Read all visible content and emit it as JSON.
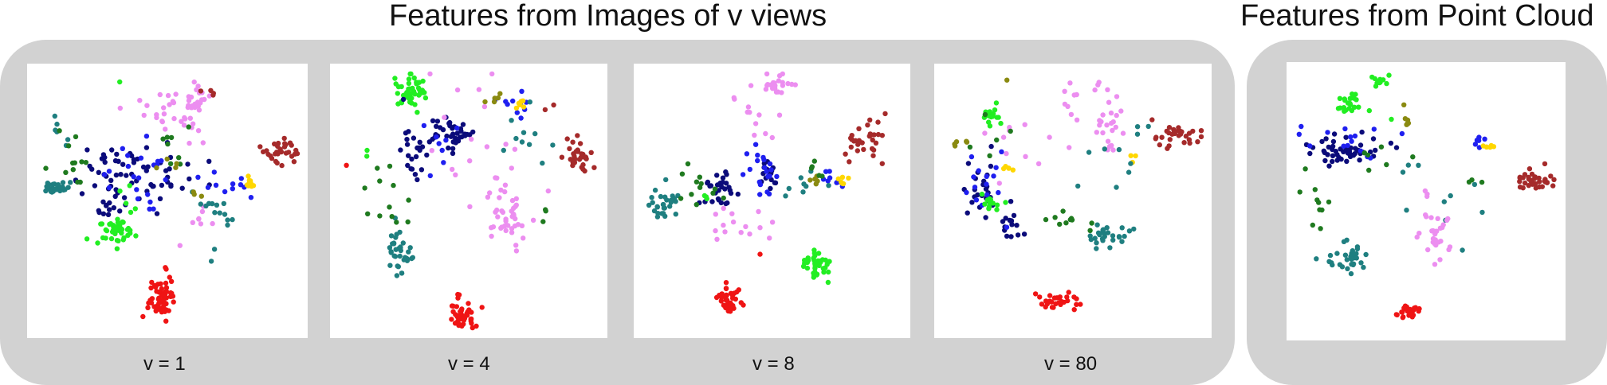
{
  "headings": {
    "views": "Features from Images of v views",
    "point_cloud": "Features from Point Cloud"
  },
  "colors": {
    "navy": "#0b0b7a",
    "blue": "#1f1ff0",
    "green": "#22ee22",
    "dark_green": "#1f7a1f",
    "teal": "#1f7f80",
    "violet": "#ec8ef0",
    "red": "#ef1414",
    "brown": "#a52a2a",
    "olive": "#8a8a10",
    "gold": "#ffd700"
  },
  "chart_data": [
    {
      "type": "scatter",
      "caption": "v = 1",
      "clusters": [
        {
          "color": "violet",
          "cx": 0.6,
          "cy": 0.12,
          "sx": 0.05,
          "sy": 0.03,
          "n": 30
        },
        {
          "color": "violet",
          "cx": 0.47,
          "cy": 0.15,
          "sx": 0.06,
          "sy": 0.06,
          "n": 12
        },
        {
          "color": "violet",
          "cx": 0.59,
          "cy": 0.25,
          "sx": 0.02,
          "sy": 0.04,
          "n": 8
        },
        {
          "color": "violet",
          "cx": 0.62,
          "cy": 0.58,
          "sx": 0.03,
          "sy": 0.06,
          "n": 8
        },
        {
          "color": "brown",
          "cx": 0.92,
          "cy": 0.31,
          "sx": 0.04,
          "sy": 0.025,
          "n": 30
        },
        {
          "color": "brown",
          "cx": 0.66,
          "cy": 0.1,
          "sx": 0.01,
          "sy": 0.01,
          "n": 4
        },
        {
          "color": "navy",
          "cx": 0.36,
          "cy": 0.4,
          "sx": 0.12,
          "sy": 0.05,
          "n": 60
        },
        {
          "color": "navy",
          "cx": 0.3,
          "cy": 0.52,
          "sx": 0.04,
          "sy": 0.04,
          "n": 15
        },
        {
          "color": "blue",
          "cx": 0.42,
          "cy": 0.42,
          "sx": 0.1,
          "sy": 0.06,
          "n": 22
        },
        {
          "color": "blue",
          "cx": 0.76,
          "cy": 0.44,
          "sx": 0.05,
          "sy": 0.03,
          "n": 10
        },
        {
          "color": "green",
          "cx": 0.31,
          "cy": 0.61,
          "sx": 0.03,
          "sy": 0.025,
          "n": 40
        },
        {
          "color": "green",
          "cx": 0.33,
          "cy": 0.52,
          "sx": 0.03,
          "sy": 0.05,
          "n": 8
        },
        {
          "color": "green",
          "cx": 0.32,
          "cy": 0.05,
          "sx": 0.005,
          "sy": 0.005,
          "n": 1
        },
        {
          "color": "teal",
          "cx": 0.09,
          "cy": 0.45,
          "sx": 0.03,
          "sy": 0.015,
          "n": 25
        },
        {
          "color": "teal",
          "cx": 0.65,
          "cy": 0.55,
          "sx": 0.05,
          "sy": 0.05,
          "n": 15
        },
        {
          "color": "teal",
          "cx": 0.1,
          "cy": 0.25,
          "sx": 0.02,
          "sy": 0.04,
          "n": 6
        },
        {
          "color": "dark_green",
          "cx": 0.16,
          "cy": 0.35,
          "sx": 0.04,
          "sy": 0.07,
          "n": 12
        },
        {
          "color": "dark_green",
          "cx": 0.52,
          "cy": 0.28,
          "sx": 0.05,
          "sy": 0.05,
          "n": 8
        },
        {
          "color": "olive",
          "cx": 0.6,
          "cy": 0.47,
          "sx": 0.02,
          "sy": 0.01,
          "n": 3
        },
        {
          "color": "olive",
          "cx": 0.5,
          "cy": 0.35,
          "sx": 0.03,
          "sy": 0.04,
          "n": 4
        },
        {
          "color": "gold",
          "cx": 0.81,
          "cy": 0.43,
          "sx": 0.015,
          "sy": 0.012,
          "n": 10
        },
        {
          "color": "red",
          "cx": 0.47,
          "cy": 0.88,
          "sx": 0.025,
          "sy": 0.04,
          "n": 55
        },
        {
          "color": "red",
          "cx": 0.49,
          "cy": 0.76,
          "sx": 0.005,
          "sy": 0.005,
          "n": 2
        }
      ]
    },
    {
      "type": "scatter",
      "caption": "v = 4",
      "clusters": [
        {
          "color": "green",
          "cx": 0.28,
          "cy": 0.08,
          "sx": 0.035,
          "sy": 0.035,
          "n": 45
        },
        {
          "color": "green",
          "cx": 0.13,
          "cy": 0.32,
          "sx": 0.01,
          "sy": 0.01,
          "n": 2
        },
        {
          "color": "navy",
          "cx": 0.44,
          "cy": 0.24,
          "sx": 0.035,
          "sy": 0.03,
          "n": 35
        },
        {
          "color": "navy",
          "cx": 0.29,
          "cy": 0.31,
          "sx": 0.04,
          "sy": 0.06,
          "n": 25
        },
        {
          "color": "blue",
          "cx": 0.67,
          "cy": 0.12,
          "sx": 0.04,
          "sy": 0.03,
          "n": 10
        },
        {
          "color": "blue",
          "cx": 0.4,
          "cy": 0.3,
          "sx": 0.05,
          "sy": 0.05,
          "n": 8
        },
        {
          "color": "gold",
          "cx": 0.69,
          "cy": 0.13,
          "sx": 0.015,
          "sy": 0.01,
          "n": 8
        },
        {
          "color": "olive",
          "cx": 0.6,
          "cy": 0.11,
          "sx": 0.015,
          "sy": 0.01,
          "n": 5
        },
        {
          "color": "brown",
          "cx": 0.92,
          "cy": 0.32,
          "sx": 0.025,
          "sy": 0.035,
          "n": 30
        },
        {
          "color": "brown",
          "cx": 0.8,
          "cy": 0.15,
          "sx": 0.01,
          "sy": 0.01,
          "n": 2
        },
        {
          "color": "teal",
          "cx": 0.7,
          "cy": 0.25,
          "sx": 0.06,
          "sy": 0.05,
          "n": 10
        },
        {
          "color": "teal",
          "cx": 0.24,
          "cy": 0.7,
          "sx": 0.025,
          "sy": 0.045,
          "n": 35
        },
        {
          "color": "violet",
          "cx": 0.65,
          "cy": 0.56,
          "sx": 0.04,
          "sy": 0.06,
          "n": 40
        },
        {
          "color": "violet",
          "cx": 0.55,
          "cy": 0.25,
          "sx": 0.12,
          "sy": 0.14,
          "n": 20
        },
        {
          "color": "dark_green",
          "cx": 0.2,
          "cy": 0.45,
          "sx": 0.05,
          "sy": 0.08,
          "n": 12
        },
        {
          "color": "dark_green",
          "cx": 0.78,
          "cy": 0.55,
          "sx": 0.04,
          "sy": 0.04,
          "n": 3
        },
        {
          "color": "red",
          "cx": 0.48,
          "cy": 0.93,
          "sx": 0.025,
          "sy": 0.03,
          "n": 45
        },
        {
          "color": "red",
          "cx": 0.04,
          "cy": 0.36,
          "sx": 0.005,
          "sy": 0.005,
          "n": 1
        }
      ]
    },
    {
      "type": "scatter",
      "caption": "v = 8",
      "clusters": [
        {
          "color": "violet",
          "cx": 0.52,
          "cy": 0.06,
          "sx": 0.03,
          "sy": 0.02,
          "n": 22
        },
        {
          "color": "violet",
          "cx": 0.42,
          "cy": 0.15,
          "sx": 0.05,
          "sy": 0.06,
          "n": 12
        },
        {
          "color": "violet",
          "cx": 0.35,
          "cy": 0.6,
          "sx": 0.07,
          "sy": 0.05,
          "n": 15
        },
        {
          "color": "brown",
          "cx": 0.87,
          "cy": 0.27,
          "sx": 0.035,
          "sy": 0.05,
          "n": 30
        },
        {
          "color": "navy",
          "cx": 0.31,
          "cy": 0.45,
          "sx": 0.04,
          "sy": 0.035,
          "n": 30
        },
        {
          "color": "navy",
          "cx": 0.49,
          "cy": 0.4,
          "sx": 0.025,
          "sy": 0.04,
          "n": 15
        },
        {
          "color": "blue",
          "cx": 0.48,
          "cy": 0.38,
          "sx": 0.035,
          "sy": 0.05,
          "n": 20
        },
        {
          "color": "blue",
          "cx": 0.74,
          "cy": 0.42,
          "sx": 0.03,
          "sy": 0.02,
          "n": 8
        },
        {
          "color": "gold",
          "cx": 0.77,
          "cy": 0.42,
          "sx": 0.015,
          "sy": 0.01,
          "n": 6
        },
        {
          "color": "olive",
          "cx": 0.66,
          "cy": 0.42,
          "sx": 0.02,
          "sy": 0.01,
          "n": 5
        },
        {
          "color": "teal",
          "cx": 0.1,
          "cy": 0.51,
          "sx": 0.03,
          "sy": 0.04,
          "n": 28
        },
        {
          "color": "teal",
          "cx": 0.62,
          "cy": 0.45,
          "sx": 0.06,
          "sy": 0.05,
          "n": 8
        },
        {
          "color": "dark_green",
          "cx": 0.22,
          "cy": 0.43,
          "sx": 0.05,
          "sy": 0.06,
          "n": 12
        },
        {
          "color": "dark_green",
          "cx": 0.65,
          "cy": 0.35,
          "sx": 0.04,
          "sy": 0.03,
          "n": 5
        },
        {
          "color": "green",
          "cx": 0.66,
          "cy": 0.74,
          "sx": 0.025,
          "sy": 0.025,
          "n": 40
        },
        {
          "color": "green",
          "cx": 0.25,
          "cy": 0.49,
          "sx": 0.01,
          "sy": 0.01,
          "n": 3
        },
        {
          "color": "red",
          "cx": 0.33,
          "cy": 0.88,
          "sx": 0.025,
          "sy": 0.03,
          "n": 40
        },
        {
          "color": "red",
          "cx": 0.46,
          "cy": 0.71,
          "sx": 0.005,
          "sy": 0.005,
          "n": 1
        }
      ]
    },
    {
      "type": "scatter",
      "caption": "v = 80",
      "clusters": [
        {
          "color": "violet",
          "cx": 0.63,
          "cy": 0.18,
          "sx": 0.03,
          "sy": 0.06,
          "n": 25
        },
        {
          "color": "violet",
          "cx": 0.51,
          "cy": 0.12,
          "sx": 0.02,
          "sy": 0.03,
          "n": 8
        },
        {
          "color": "violet",
          "cx": 0.4,
          "cy": 0.3,
          "sx": 0.1,
          "sy": 0.08,
          "n": 12
        },
        {
          "color": "brown",
          "cx": 0.89,
          "cy": 0.25,
          "sx": 0.05,
          "sy": 0.02,
          "n": 30
        },
        {
          "color": "navy",
          "cx": 0.16,
          "cy": 0.45,
          "sx": 0.03,
          "sy": 0.05,
          "n": 25
        },
        {
          "color": "navy",
          "cx": 0.26,
          "cy": 0.58,
          "sx": 0.02,
          "sy": 0.03,
          "n": 15
        },
        {
          "color": "blue",
          "cx": 0.18,
          "cy": 0.48,
          "sx": 0.04,
          "sy": 0.08,
          "n": 15
        },
        {
          "color": "gold",
          "cx": 0.26,
          "cy": 0.38,
          "sx": 0.015,
          "sy": 0.01,
          "n": 5
        },
        {
          "color": "gold",
          "cx": 0.73,
          "cy": 0.34,
          "sx": 0.008,
          "sy": 0.008,
          "n": 3
        },
        {
          "color": "green",
          "cx": 0.19,
          "cy": 0.51,
          "sx": 0.025,
          "sy": 0.02,
          "n": 12
        },
        {
          "color": "green",
          "cx": 0.2,
          "cy": 0.19,
          "sx": 0.02,
          "sy": 0.025,
          "n": 15
        },
        {
          "color": "teal",
          "cx": 0.62,
          "cy": 0.62,
          "sx": 0.04,
          "sy": 0.03,
          "n": 28
        },
        {
          "color": "teal",
          "cx": 0.65,
          "cy": 0.35,
          "sx": 0.05,
          "sy": 0.08,
          "n": 10
        },
        {
          "color": "dark_green",
          "cx": 0.47,
          "cy": 0.58,
          "sx": 0.06,
          "sy": 0.02,
          "n": 10
        },
        {
          "color": "dark_green",
          "cx": 0.22,
          "cy": 0.2,
          "sx": 0.06,
          "sy": 0.06,
          "n": 6
        },
        {
          "color": "olive",
          "cx": 0.08,
          "cy": 0.27,
          "sx": 0.015,
          "sy": 0.01,
          "n": 5
        },
        {
          "color": "olive",
          "cx": 0.25,
          "cy": 0.04,
          "sx": 0.005,
          "sy": 0.005,
          "n": 1
        },
        {
          "color": "red",
          "cx": 0.44,
          "cy": 0.88,
          "sx": 0.04,
          "sy": 0.015,
          "n": 30
        }
      ]
    },
    {
      "type": "scatter",
      "caption": "",
      "clusters": [
        {
          "color": "green",
          "cx": 0.32,
          "cy": 0.05,
          "sx": 0.015,
          "sy": 0.015,
          "n": 12
        },
        {
          "color": "green",
          "cx": 0.22,
          "cy": 0.13,
          "sx": 0.025,
          "sy": 0.02,
          "n": 22
        },
        {
          "color": "green",
          "cx": 0.37,
          "cy": 0.19,
          "sx": 0.005,
          "sy": 0.005,
          "n": 1
        },
        {
          "color": "navy",
          "cx": 0.2,
          "cy": 0.31,
          "sx": 0.07,
          "sy": 0.03,
          "n": 50
        },
        {
          "color": "blue",
          "cx": 0.22,
          "cy": 0.28,
          "sx": 0.08,
          "sy": 0.04,
          "n": 15
        },
        {
          "color": "blue",
          "cx": 0.7,
          "cy": 0.29,
          "sx": 0.01,
          "sy": 0.015,
          "n": 6
        },
        {
          "color": "gold",
          "cx": 0.74,
          "cy": 0.3,
          "sx": 0.015,
          "sy": 0.008,
          "n": 6
        },
        {
          "color": "olive",
          "cx": 0.44,
          "cy": 0.2,
          "sx": 0.01,
          "sy": 0.02,
          "n": 6
        },
        {
          "color": "olive",
          "cx": 0.42,
          "cy": 0.14,
          "sx": 0.005,
          "sy": 0.005,
          "n": 1
        },
        {
          "color": "brown",
          "cx": 0.9,
          "cy": 0.42,
          "sx": 0.04,
          "sy": 0.02,
          "n": 35
        },
        {
          "color": "teal",
          "cx": 0.21,
          "cy": 0.71,
          "sx": 0.04,
          "sy": 0.025,
          "n": 30
        },
        {
          "color": "teal",
          "cx": 0.5,
          "cy": 0.45,
          "sx": 0.1,
          "sy": 0.1,
          "n": 10
        },
        {
          "color": "violet",
          "cx": 0.55,
          "cy": 0.64,
          "sx": 0.035,
          "sy": 0.04,
          "n": 25
        },
        {
          "color": "violet",
          "cx": 0.48,
          "cy": 0.52,
          "sx": 0.03,
          "sy": 0.03,
          "n": 6
        },
        {
          "color": "dark_green",
          "cx": 0.08,
          "cy": 0.5,
          "sx": 0.04,
          "sy": 0.08,
          "n": 10
        },
        {
          "color": "dark_green",
          "cx": 0.33,
          "cy": 0.33,
          "sx": 0.06,
          "sy": 0.03,
          "n": 6
        },
        {
          "color": "dark_green",
          "cx": 0.68,
          "cy": 0.42,
          "sx": 0.03,
          "sy": 0.03,
          "n": 3
        },
        {
          "color": "red",
          "cx": 0.43,
          "cy": 0.92,
          "sx": 0.02,
          "sy": 0.015,
          "n": 30
        }
      ]
    }
  ]
}
